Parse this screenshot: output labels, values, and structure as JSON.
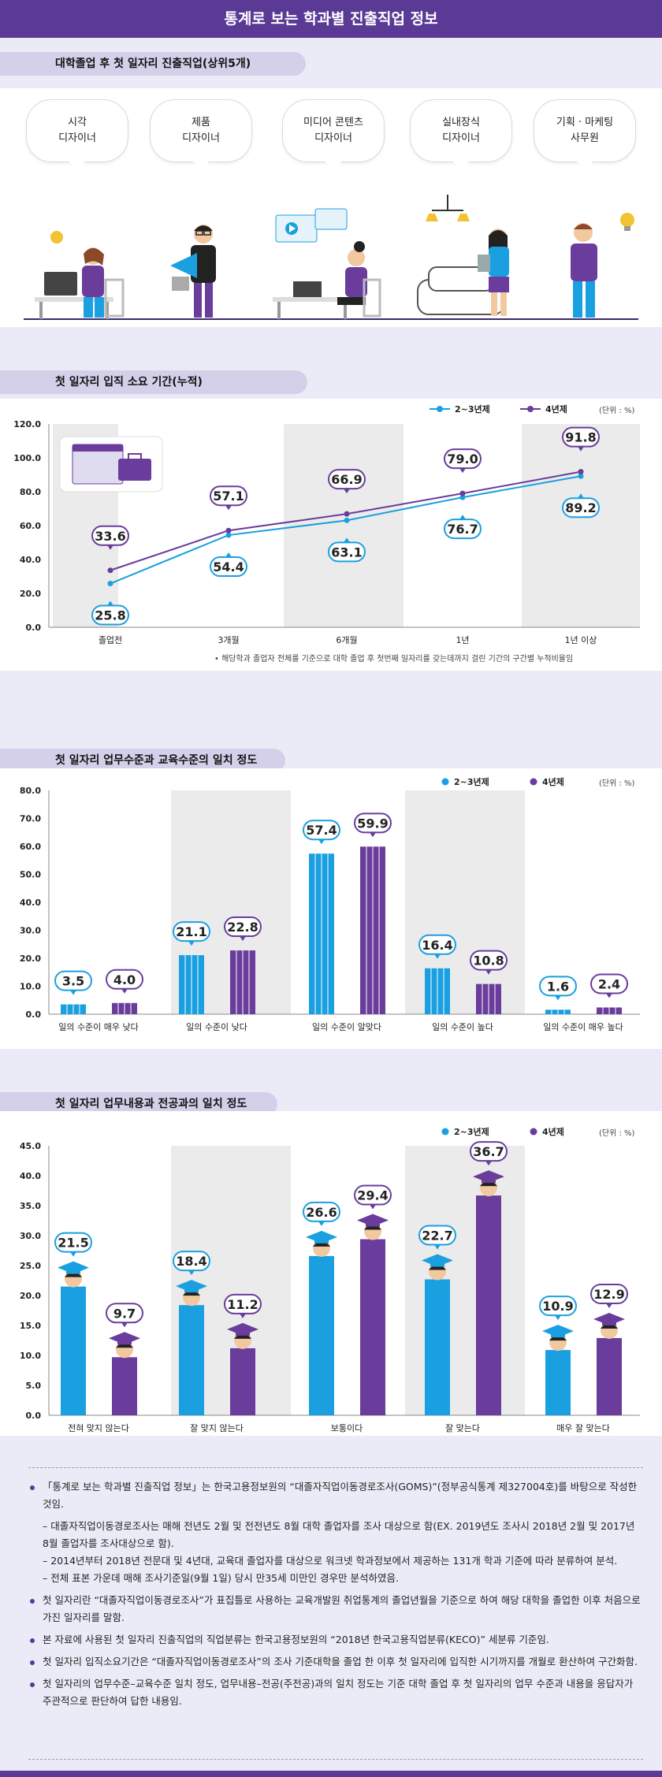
{
  "header": {
    "title": "통계로 보는 학과별 진출직업 정보"
  },
  "section1": {
    "title": "대학졸업 후 첫 일자리 진출직업(상위5개)",
    "jobs": [
      {
        "line1": "시각",
        "line2": "디자이너"
      },
      {
        "line1": "제품",
        "line2": "디자이너"
      },
      {
        "line1": "미디어 콘텐츠",
        "line2": "디자이너"
      },
      {
        "line1": "실내장식",
        "line2": "디자이너"
      },
      {
        "line1": "기획 · 마케팅",
        "line2": "사무원"
      }
    ]
  },
  "section2": {
    "title": "첫 일자리 입직 소요 기간(누적)",
    "legend_a": "2~3년제",
    "legend_b": "4년제",
    "unit": "(단위 : %)",
    "note": "해당학과 졸업자 전체를 기준으로 대학 졸업 후 첫번째 일자리를 갖는데까지 걸린 기간의 구간별 누적비율임"
  },
  "section3": {
    "title": "첫 일자리 업무수준과 교육수준의 일치 정도",
    "legend_a": "2~3년제",
    "legend_b": "4년제",
    "unit": "(단위 : %)"
  },
  "section4": {
    "title": "첫 일자리 업무내용과 전공과의 일치 정도",
    "legend_a": "2~3년제",
    "legend_b": "4년제",
    "unit": "(단위 : %)"
  },
  "colors": {
    "blue": "#1aa0e0",
    "purple": "#6a3c9c",
    "banner": "#5b3a96"
  },
  "chart_data": [
    {
      "type": "line",
      "title": "첫 일자리 입직 소요 기간(누적)",
      "categories": [
        "졸업전",
        "3개월",
        "6개월",
        "1년",
        "1년 이상"
      ],
      "series": [
        {
          "name": "2~3년제",
          "values": [
            25.8,
            54.4,
            63.1,
            76.7,
            89.2
          ]
        },
        {
          "name": "4년제",
          "values": [
            33.6,
            57.1,
            66.9,
            79.0,
            91.8
          ]
        }
      ],
      "ylim": [
        0,
        120
      ],
      "yticks": [
        "0.0",
        "20.0",
        "40.0",
        "60.0",
        "80.0",
        "100.0",
        "120.0"
      ],
      "legend": "top-right"
    },
    {
      "type": "bar",
      "title": "첫 일자리 업무수준과 교육수준의 일치 정도",
      "categories": [
        "일의 수준이 매우 낮다",
        "일의 수준이 낮다",
        "일의 수준이 알맞다",
        "일의 수준이 높다",
        "일의 수준이 매우 높다"
      ],
      "series": [
        {
          "name": "2~3년제",
          "values": [
            3.5,
            21.1,
            57.4,
            16.4,
            1.6
          ]
        },
        {
          "name": "4년제",
          "values": [
            4.0,
            22.8,
            59.9,
            10.8,
            2.4
          ]
        }
      ],
      "ylim": [
        0,
        80
      ],
      "yticks": [
        "0.0",
        "10.0",
        "20.0",
        "30.0",
        "40.0",
        "50.0",
        "60.0",
        "70.0",
        "80.0"
      ],
      "legend": "top-right"
    },
    {
      "type": "bar",
      "title": "첫 일자리 업무내용과 전공과의 일치 정도",
      "categories": [
        "전혀 맞지 않는다",
        "잘 맞지 않는다",
        "보통이다",
        "잘 맞는다",
        "매우 잘 맞는다"
      ],
      "series": [
        {
          "name": "2~3년제",
          "values": [
            21.5,
            18.4,
            26.6,
            22.7,
            10.9
          ]
        },
        {
          "name": "4년제",
          "values": [
            9.7,
            11.2,
            29.4,
            36.7,
            12.9
          ]
        }
      ],
      "ylim": [
        0,
        45
      ],
      "yticks": [
        "0.0",
        "5.0",
        "10.0",
        "15.0",
        "20.0",
        "25.0",
        "30.0",
        "35.0",
        "40.0",
        "45.0"
      ],
      "legend": "top-right"
    }
  ],
  "notes": [
    "「통계로 보는 학과별 진출직업 정보」는 한국고용정보원의 “대졸자직업이동경로조사(GOMS)”(정부공식통계 제327004호)를 바탕으로 작성한 것임.",
    "– 대졸자직업이동경로조사는 매해 전년도 2월 및 전전년도 8월 대학 졸업자를 조사 대상으로 함(EX. 2019년도 조사시 2018년 2월 및 2017년 8월 졸업자를 조사대상으로 함).",
    "– 2014년부터 2018년 전문대 및 4년대, 교육대 졸업자를 대상으로 워크넷 학과정보에서 제공하는 131개 학과 기준에 따라 분류하여 분석.",
    "– 전체 표본 가운데 매해 조사기준일(9월 1일) 당시 만35세 미만인 경우만 분석하였음.",
    "첫 일자리란 “대졸자직업이동경로조사”가 표집틀로 사용하는 교육개발원 취업통계의 졸업년월을 기준으로 하여 해당 대학을 졸업한 이후 처음으로 가진 일자리를 말함.",
    "본 자료에 사용된 첫 일자리 진출직업의 직업분류는 한국고용정보원의 “2018년 한국고용직업분류(KECO)” 세분류 기준임.",
    "첫 일자리 입직소요기간은 “대졸자직업이동경로조사”의 조사 기준대학을 졸업 한 이후 첫 일자리에 입직한 시기까지를 개월로 환산하여 구간화함.",
    "첫 일자리의 업무수준–교육수준 일치 정도, 업무내용–전공(주전공)과의 일치 정도는 기준 대학 졸업 후 첫 일자리의 업무 수준과 내용을 응답자가 주관적으로 판단하여 답한 내용임."
  ]
}
